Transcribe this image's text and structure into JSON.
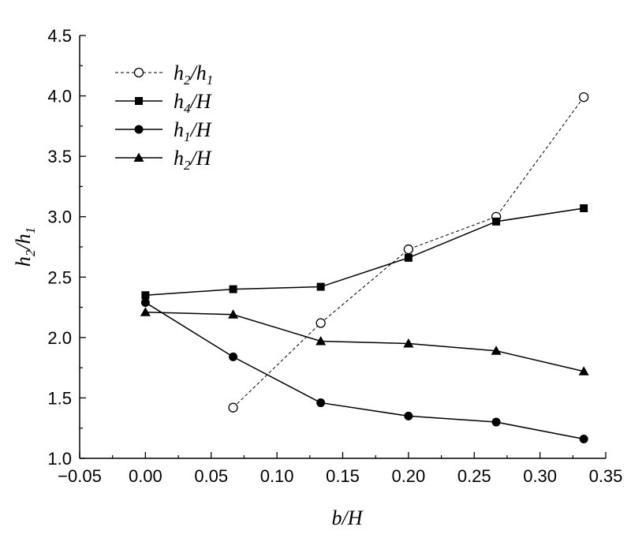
{
  "chart_data": {
    "type": "line",
    "xlabel": {
      "main": "b/H"
    },
    "ylabel": {
      "main": "h",
      "sub1": "2",
      "mid": "/h",
      "sub2": "1"
    },
    "xlim": [
      -0.05,
      0.35
    ],
    "ylim": [
      1.0,
      4.5
    ],
    "x_ticks": [
      "−0.05",
      "0.00",
      "0.05",
      "0.10",
      "0.15",
      "0.20",
      "0.25",
      "0.30",
      "0.35"
    ],
    "y_ticks": [
      "1.0",
      "1.5",
      "2.0",
      "2.5",
      "3.0",
      "3.5",
      "4.0",
      "4.5"
    ],
    "x_tick_values": [
      -0.05,
      0.0,
      0.05,
      0.1,
      0.15,
      0.2,
      0.25,
      0.3,
      0.35
    ],
    "y_tick_values": [
      1.0,
      1.5,
      2.0,
      2.5,
      3.0,
      3.5,
      4.0,
      4.5
    ],
    "grid": false,
    "legend_position": "top-left",
    "series": [
      {
        "name": "h2/h1",
        "label": {
          "a": "h",
          "s1": "2",
          "b": "/h",
          "s2": "1"
        },
        "marker": "open-circle",
        "line": "dashed",
        "x": [
          0.0667,
          0.1333,
          0.2,
          0.2667,
          0.3333
        ],
        "y": [
          1.42,
          2.12,
          2.73,
          3.0,
          3.99
        ]
      },
      {
        "name": "h4/H",
        "label": {
          "a": "h",
          "s1": "4",
          "b": "/H",
          "s2": ""
        },
        "marker": "filled-square",
        "line": "solid",
        "x": [
          0.0,
          0.0667,
          0.1333,
          0.2,
          0.2667,
          0.3333
        ],
        "y": [
          2.35,
          2.4,
          2.42,
          2.66,
          2.96,
          3.07
        ]
      },
      {
        "name": "h1/H",
        "label": {
          "a": "h",
          "s1": "1",
          "b": "/H",
          "s2": ""
        },
        "marker": "filled-circle",
        "line": "solid",
        "x": [
          0.0,
          0.0667,
          0.1333,
          0.2,
          0.2667,
          0.3333
        ],
        "y": [
          2.29,
          1.84,
          1.46,
          1.35,
          1.3,
          1.16
        ]
      },
      {
        "name": "h2/H",
        "label": {
          "a": "h",
          "s1": "2",
          "b": "/H",
          "s2": ""
        },
        "marker": "filled-triangle",
        "line": "solid",
        "x": [
          0.0,
          0.0667,
          0.1333,
          0.2,
          0.2667,
          0.3333
        ],
        "y": [
          2.21,
          2.19,
          1.97,
          1.95,
          1.89,
          1.72
        ]
      }
    ],
    "colors": {
      "line": "#000000",
      "open_marker_fill": "#ffffff"
    }
  }
}
